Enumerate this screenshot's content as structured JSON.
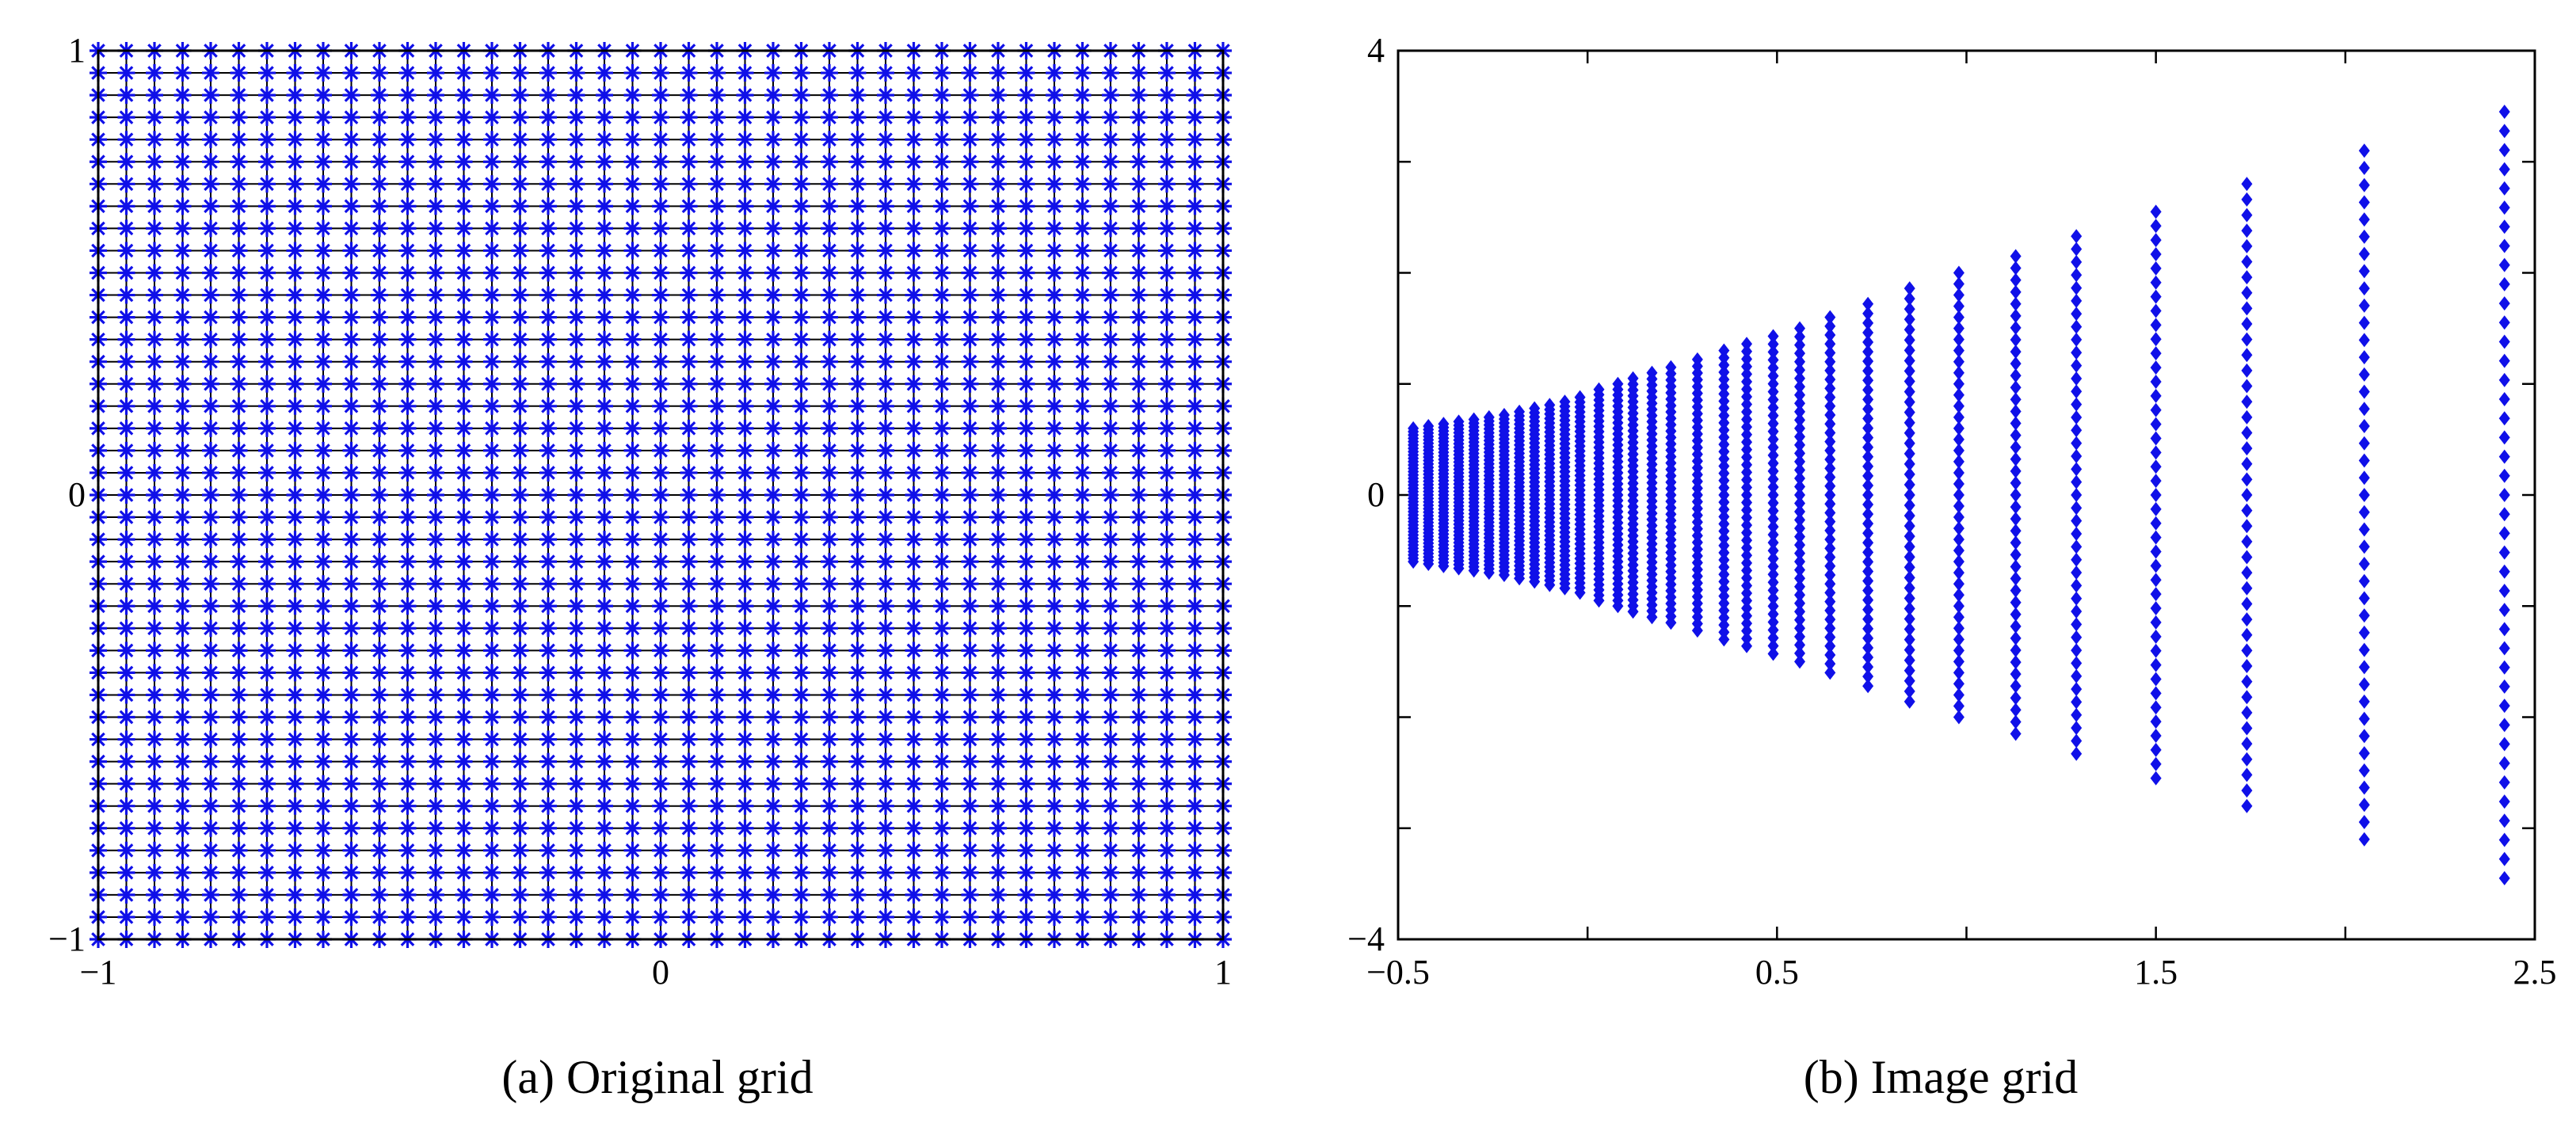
{
  "chart_data": [
    {
      "type": "scatter",
      "caption": "(a) Original grid",
      "xlim": [
        -1,
        1
      ],
      "ylim": [
        -1,
        1
      ],
      "x_ticks": [
        -1,
        0,
        1
      ],
      "y_ticks": [
        -1,
        0,
        1
      ],
      "x_tick_labels": [
        "−1",
        "0",
        "1"
      ],
      "y_tick_labels": [
        "−1",
        "0",
        "1"
      ],
      "grid": "black grid lines through every sample point",
      "marker": "asterisk",
      "color": "#1010e8",
      "grid_color": "#000000",
      "series": [
        {
          "x_start": -1,
          "x_end": 1,
          "x_count": 41,
          "y_start": -1,
          "y_end": 1,
          "y_count": 41
        }
      ]
    },
    {
      "type": "scatter",
      "caption": "(b) Image grid",
      "xlim": [
        -0.5,
        2.5
      ],
      "ylim": [
        -4,
        4
      ],
      "x_ticks": [
        -0.5,
        0.5,
        1.5,
        2.5
      ],
      "x_minor_ticks": [
        0,
        1,
        2
      ],
      "y_ticks": [
        -4,
        0,
        4
      ],
      "y_minor_ticks": [
        -3,
        -2,
        -1,
        1,
        2,
        3
      ],
      "x_tick_labels": [
        "−0.5",
        "0.5",
        "1.5",
        "2.5"
      ],
      "y_tick_labels": [
        "−4",
        "0",
        "4"
      ],
      "grid": "off",
      "marker": "diamond",
      "color": "#1010e8",
      "series": [
        {
          "points_per_column": 41,
          "columns": [
            {
              "x": -0.46,
              "y_half": 0.6
            },
            {
              "x": -0.42,
              "y_half": 0.62
            },
            {
              "x": -0.38,
              "y_half": 0.64
            },
            {
              "x": -0.34,
              "y_half": 0.66
            },
            {
              "x": -0.3,
              "y_half": 0.68
            },
            {
              "x": -0.26,
              "y_half": 0.7
            },
            {
              "x": -0.22,
              "y_half": 0.72
            },
            {
              "x": -0.18,
              "y_half": 0.75
            },
            {
              "x": -0.14,
              "y_half": 0.78
            },
            {
              "x": -0.1,
              "y_half": 0.81
            },
            {
              "x": -0.06,
              "y_half": 0.84
            },
            {
              "x": -0.02,
              "y_half": 0.88
            },
            {
              "x": 0.03,
              "y_half": 0.95
            },
            {
              "x": 0.08,
              "y_half": 1.0
            },
            {
              "x": 0.12,
              "y_half": 1.05
            },
            {
              "x": 0.17,
              "y_half": 1.1
            },
            {
              "x": 0.22,
              "y_half": 1.15
            },
            {
              "x": 0.29,
              "y_half": 1.22
            },
            {
              "x": 0.36,
              "y_half": 1.3
            },
            {
              "x": 0.42,
              "y_half": 1.36
            },
            {
              "x": 0.49,
              "y_half": 1.43
            },
            {
              "x": 0.56,
              "y_half": 1.5
            },
            {
              "x": 0.64,
              "y_half": 1.6
            },
            {
              "x": 0.74,
              "y_half": 1.72
            },
            {
              "x": 0.85,
              "y_half": 1.86
            },
            {
              "x": 0.98,
              "y_half": 2.0
            },
            {
              "x": 1.13,
              "y_half": 2.15
            },
            {
              "x": 1.29,
              "y_half": 2.33
            },
            {
              "x": 1.5,
              "y_half": 2.55
            },
            {
              "x": 1.74,
              "y_half": 2.8
            },
            {
              "x": 2.05,
              "y_half": 3.1
            },
            {
              "x": 2.42,
              "y_half": 3.45
            }
          ]
        }
      ]
    }
  ]
}
